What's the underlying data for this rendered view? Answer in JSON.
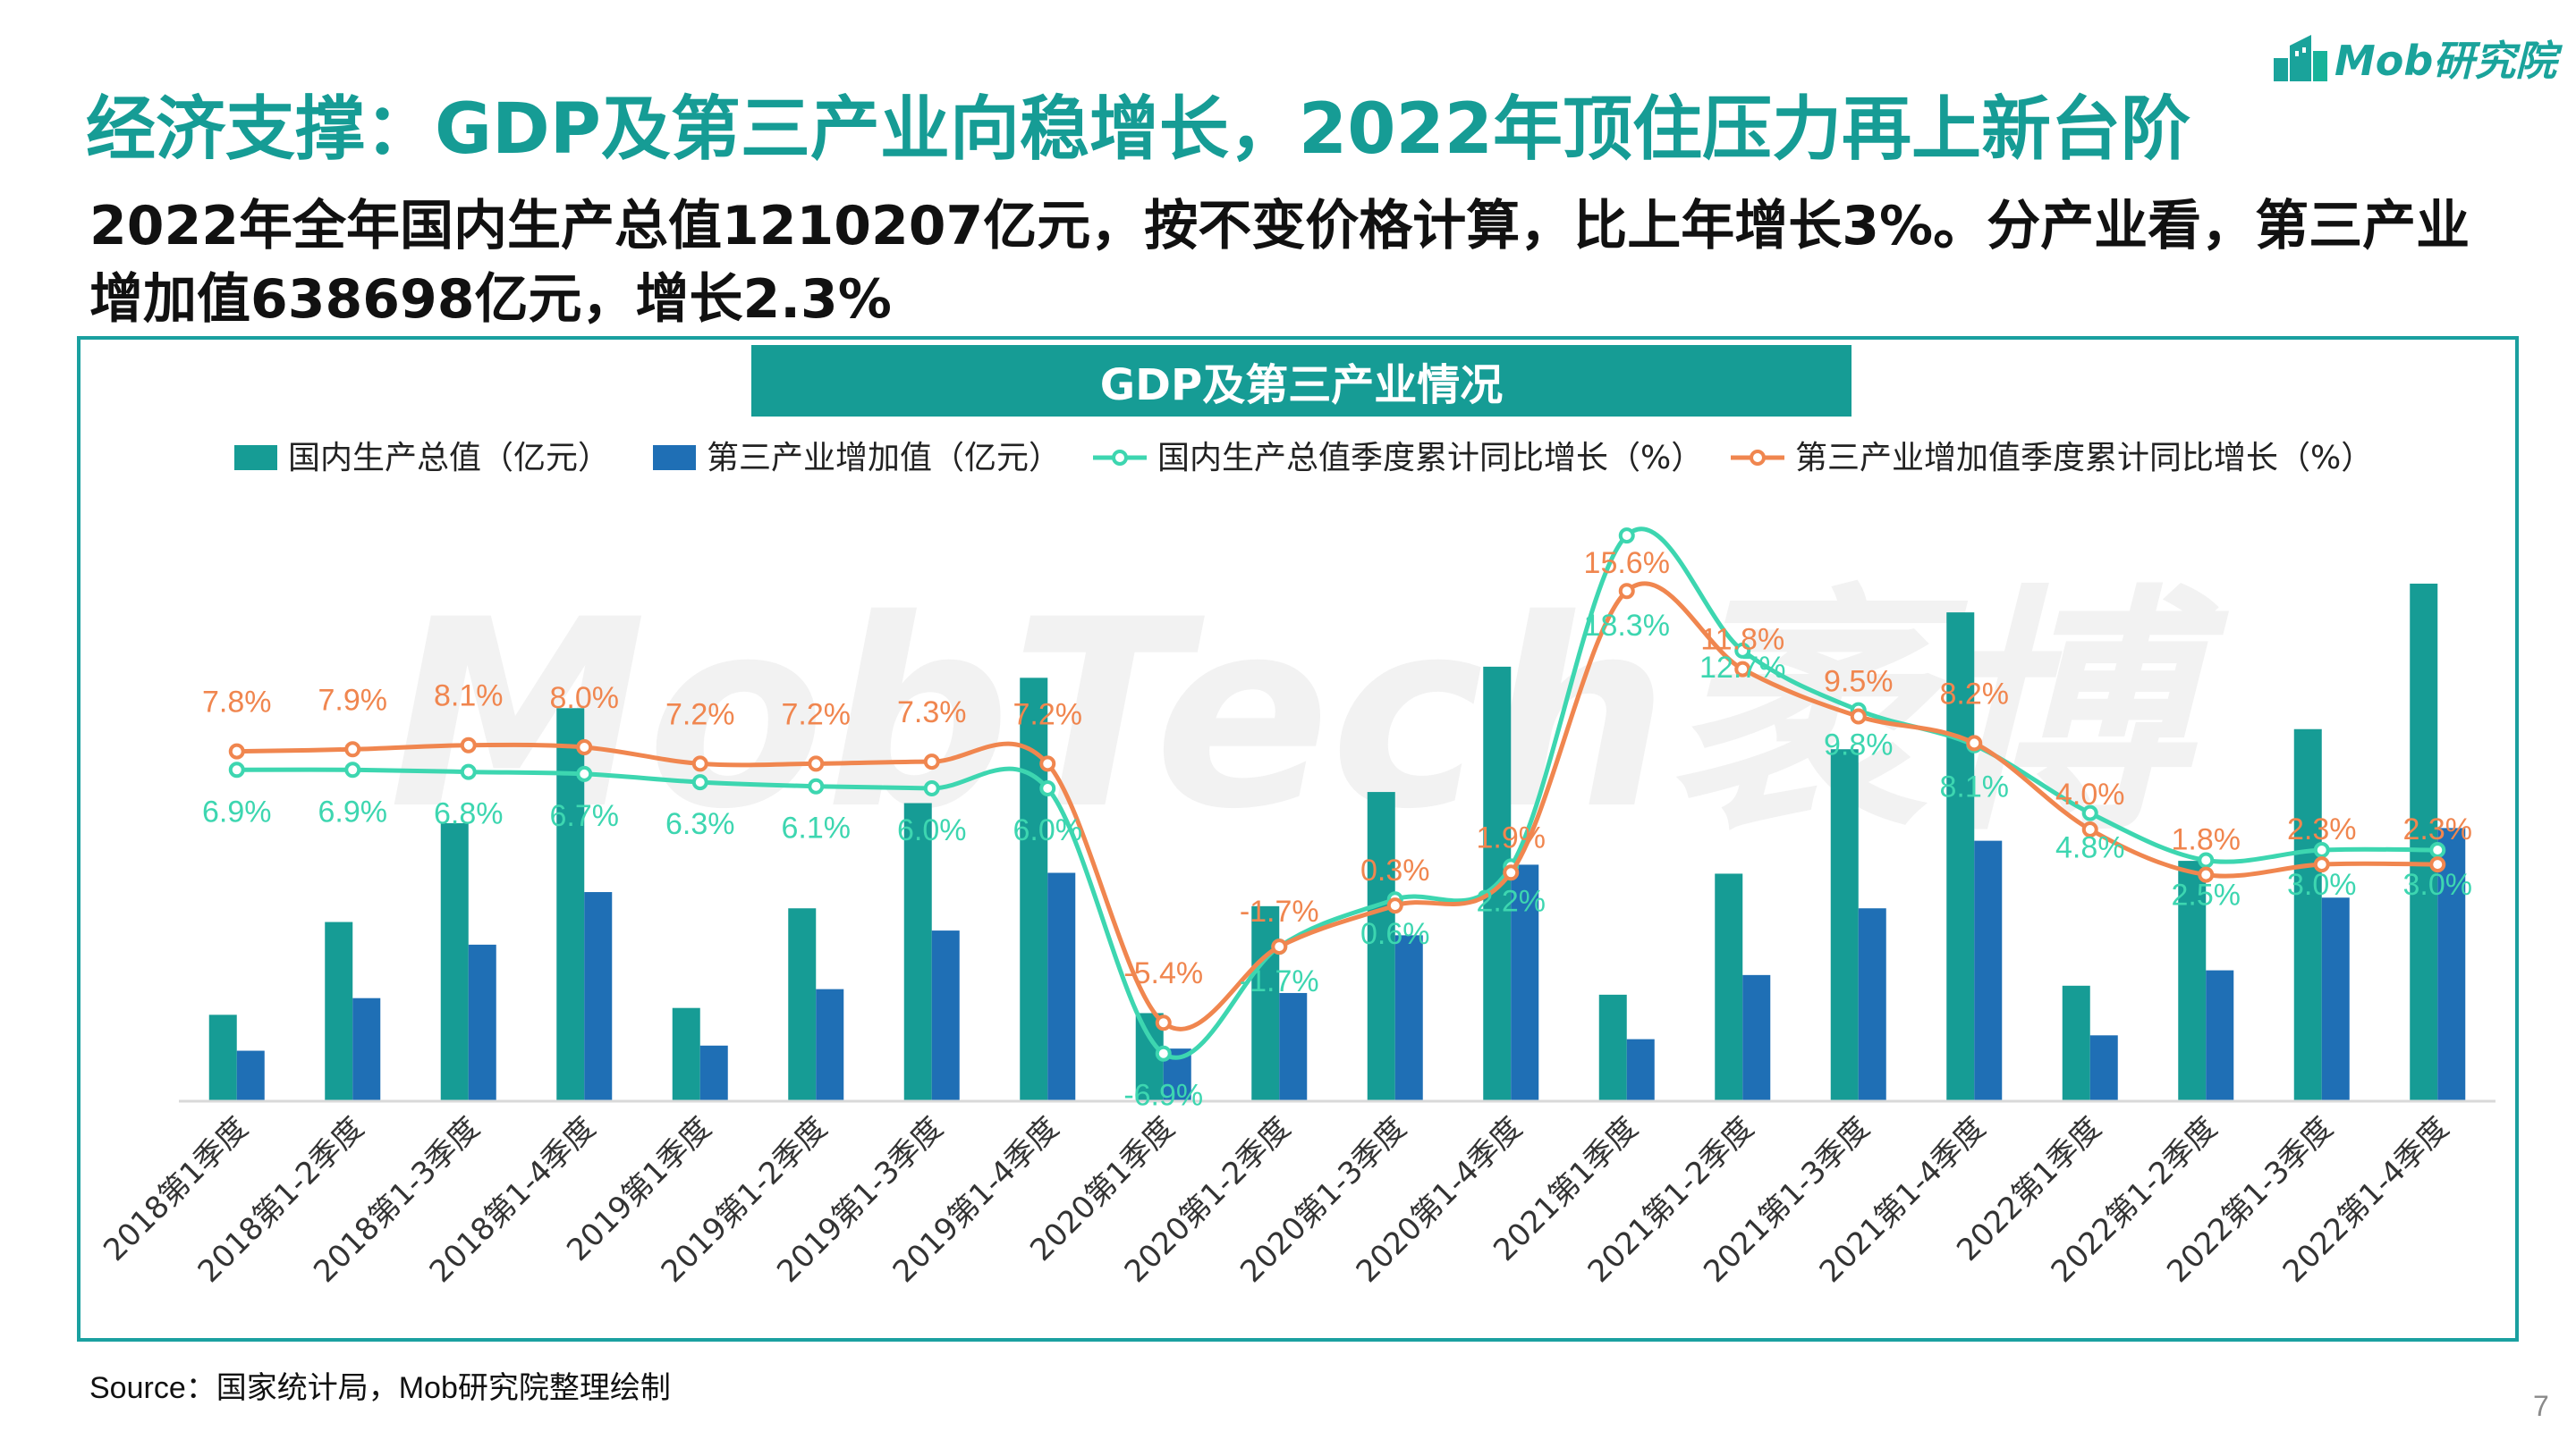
{
  "brand": {
    "name": "Mob研究院",
    "watermark": "MobTech袤博"
  },
  "title": "经济支撑：GDP及第三产业向稳增长，2022年顶住压力再上新台阶",
  "subtitle": "2022年全年国内生产总值1210207亿元，按不变价格计算，比上年增长3%。分产业看，第三产业增加值638698亿元，增长2.3%",
  "source": "Source：国家统计局，Mob研究院整理绘制",
  "page_number": "7",
  "colors": {
    "accent": "#169c95",
    "gdp_bar": "#169c95",
    "tertiary_bar": "#1f6fb5",
    "gdp_line": "#3dd6b0",
    "tertiary_line": "#f0864f",
    "axis": "#d9d9d9"
  },
  "chart_data": {
    "type": "bar",
    "title": "GDP及第三产业情况",
    "categories": [
      "2018第1季度",
      "2018第1-2季度",
      "2018第1-3季度",
      "2018第1-4季度",
      "2019第1季度",
      "2019第1-2季度",
      "2019第1-3季度",
      "2019第1-4季度",
      "2020第1季度",
      "2020第1-2季度",
      "2020第1-3季度",
      "2020第1-4季度",
      "2021第1季度",
      "2021第1-2季度",
      "2021第1-3季度",
      "2021第1-4季度",
      "2022第1季度",
      "2022第1-2季度",
      "2022第1-3季度",
      "2022第1-4季度"
    ],
    "series": [
      {
        "name": "国内生产总值（亿元）",
        "kind": "bar",
        "values": [
          202000,
          419000,
          650000,
          919000,
          218000,
          451000,
          697000,
          990000,
          206000,
          456000,
          723000,
          1016000,
          249000,
          532000,
          823000,
          1143000,
          270000,
          562000,
          870000,
          1210207
        ]
      },
      {
        "name": "第三产业增加值（亿元）",
        "kind": "bar",
        "values": [
          118000,
          241000,
          366000,
          489000,
          130000,
          262000,
          399000,
          534000,
          123000,
          253000,
          388000,
          553000,
          145000,
          295000,
          451000,
          609000,
          154000,
          306000,
          476000,
          638698
        ]
      },
      {
        "name": "国内生产总值季度累计同比增长（%）",
        "kind": "line",
        "axis": "secondary",
        "values": [
          6.9,
          6.9,
          6.8,
          6.7,
          6.3,
          6.1,
          6.0,
          6.0,
          -6.9,
          -1.7,
          0.6,
          2.2,
          18.3,
          12.7,
          9.8,
          8.1,
          4.8,
          2.5,
          3.0,
          3.0
        ],
        "labels": [
          "6.9%",
          "6.9%",
          "6.8%",
          "6.7%",
          "6.3%",
          "6.1%",
          "6.0%",
          "6.0%",
          "-6.9%",
          "-1.7%",
          "0.6%",
          "2.2%",
          "18.3%",
          "12.7%",
          "9.8%",
          "8.1%",
          "4.8%",
          "2.5%",
          "3.0%",
          "3.0%"
        ]
      },
      {
        "name": "第三产业增加值季度累计同比增长（%）",
        "kind": "line",
        "axis": "secondary",
        "values": [
          7.8,
          7.9,
          8.1,
          8.0,
          7.2,
          7.2,
          7.3,
          7.2,
          -5.4,
          -1.7,
          0.3,
          1.9,
          15.6,
          11.8,
          9.5,
          8.2,
          4.0,
          1.8,
          2.3,
          2.3
        ],
        "labels": [
          "7.8%",
          "7.9%",
          "8.1%",
          "8.0%",
          "7.2%",
          "7.2%",
          "7.3%",
          "7.2%",
          "-5.4%",
          "-1.7%",
          "0.3%",
          "1.9%",
          "15.6%",
          "11.8%",
          "9.5%",
          "8.2%",
          "4.0%",
          "1.8%",
          "2.3%",
          "2.3%"
        ]
      }
    ],
    "ylim": [
      0,
      1300000
    ],
    "y2lim": [
      -10,
      20
    ],
    "legend_position": "top",
    "grid": false
  }
}
